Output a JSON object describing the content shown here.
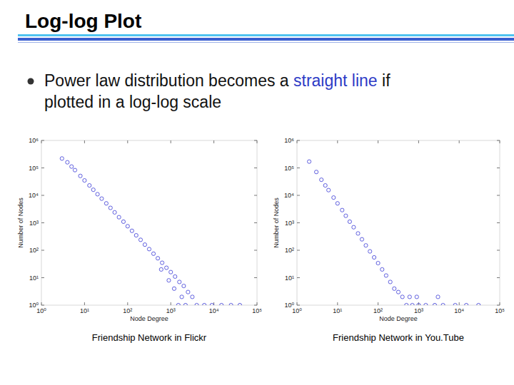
{
  "slide": {
    "title": "Log-log Plot",
    "bullet": {
      "before": "Power law distribution becomes a ",
      "highlight": "straight line",
      "after": " if",
      "continuation": "plotted in a log-log scale"
    }
  },
  "chart_data": [
    {
      "type": "scatter",
      "title": "Friendship Network in Flickr",
      "x_label": "Node Degree",
      "y_label": "Number of Nodes",
      "log": true,
      "color": "#3a3ad6",
      "marker": "o",
      "xlim": [
        1,
        100000
      ],
      "ylim": [
        1,
        1000000
      ],
      "xticks": [
        {
          "value": 1,
          "label": "10⁰"
        },
        {
          "value": 10,
          "label": "10¹"
        },
        {
          "value": 100,
          "label": "10²"
        },
        {
          "value": 1000,
          "label": "10³"
        },
        {
          "value": 10000,
          "label": "10⁴"
        },
        {
          "value": 100000,
          "label": "10⁵"
        }
      ],
      "yticks": [
        {
          "value": 1,
          "label": "10⁰"
        },
        {
          "value": 10,
          "label": "10¹"
        },
        {
          "value": 100,
          "label": "10²"
        },
        {
          "value": 1000,
          "label": "10³"
        },
        {
          "value": 10000,
          "label": "10⁴"
        },
        {
          "value": 100000,
          "label": "10⁵"
        },
        {
          "value": 1000000,
          "label": "10⁶"
        }
      ],
      "x": [
        3,
        4,
        5,
        6,
        8,
        10,
        13,
        16,
        20,
        25,
        32,
        40,
        50,
        63,
        80,
        100,
        126,
        158,
        200,
        251,
        316,
        398,
        501,
        631,
        794,
        1000,
        1259,
        1585,
        2000,
        2512,
        3162,
        600,
        900,
        1200,
        1800,
        2200,
        1500,
        4000,
        6000,
        9000,
        15000,
        25000,
        40000
      ],
      "values": [
        220000,
        160000,
        112000,
        83000,
        51000,
        35000,
        23000,
        16000,
        11000,
        7600,
        5100,
        3500,
        2400,
        1600,
        1100,
        750,
        510,
        350,
        240,
        160,
        110,
        75,
        51,
        35,
        23,
        16,
        11,
        7,
        5,
        3,
        2,
        20,
        8,
        4,
        2,
        1,
        1,
        1,
        1,
        1,
        1,
        1,
        1
      ]
    },
    {
      "type": "scatter",
      "title": "Friendship Network in You.Tube",
      "x_label": "Node Degree",
      "y_label": "Number of Nodes",
      "log": true,
      "color": "#3a3ad6",
      "marker": "o",
      "xlim": [
        1,
        100000
      ],
      "ylim": [
        1,
        1000000
      ],
      "xticks": [
        {
          "value": 1,
          "label": "10⁰"
        },
        {
          "value": 10,
          "label": "10¹"
        },
        {
          "value": 100,
          "label": "10²"
        },
        {
          "value": 1000,
          "label": "10³"
        },
        {
          "value": 10000,
          "label": "10⁴"
        },
        {
          "value": 100000,
          "label": "10⁵"
        }
      ],
      "yticks": [
        {
          "value": 1,
          "label": "10⁰"
        },
        {
          "value": 10,
          "label": "10¹"
        },
        {
          "value": 100,
          "label": "10²"
        },
        {
          "value": 1000,
          "label": "10³"
        },
        {
          "value": 10000,
          "label": "10⁴"
        },
        {
          "value": 100000,
          "label": "10⁵"
        },
        {
          "value": 1000000,
          "label": "10⁶"
        }
      ],
      "x": [
        2,
        3,
        4,
        5,
        6,
        8,
        10,
        13,
        16,
        20,
        25,
        32,
        40,
        50,
        63,
        80,
        100,
        126,
        158,
        200,
        251,
        316,
        398,
        600,
        900,
        3000,
        500,
        700,
        1000,
        1500,
        2500,
        4000,
        8000,
        15000,
        30000
      ],
      "values": [
        170000,
        71000,
        37000,
        23000,
        15500,
        8300,
        5100,
        2900,
        1800,
        1100,
        690,
        410,
        250,
        150,
        91,
        55,
        34,
        20,
        12,
        7,
        4,
        3,
        2,
        2,
        2,
        2,
        1,
        1,
        1,
        1,
        1,
        1,
        1,
        1,
        1
      ]
    }
  ]
}
